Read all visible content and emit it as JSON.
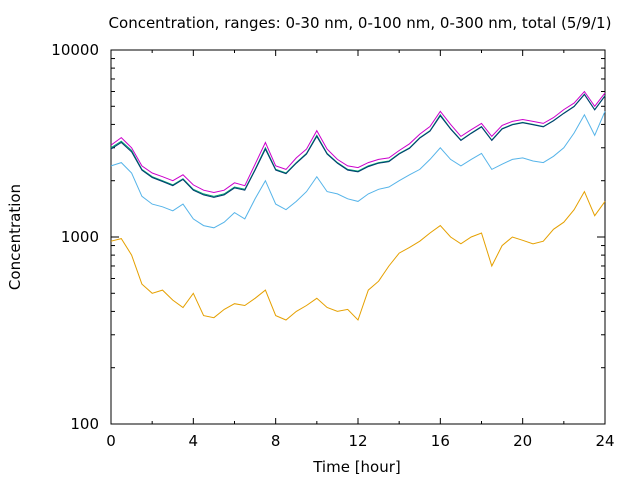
{
  "chart_data": {
    "type": "line",
    "title": "Concentration, ranges: 0-30 nm, 0-100 nm, 0-300 nm, total (5/9/1)",
    "xlabel": "Time [hour]",
    "ylabel": "Concentration",
    "xlim": [
      0,
      24
    ],
    "ylim": [
      100,
      10000
    ],
    "yscale": "log",
    "grid": false,
    "legend": "none",
    "x_ticks": [
      "0",
      "4",
      "8",
      "12",
      "16",
      "20",
      "24"
    ],
    "y_ticks": [
      "100",
      "1000",
      "10000"
    ],
    "x": [
      0,
      0.5,
      1,
      1.5,
      2,
      2.5,
      3,
      3.5,
      4,
      4.5,
      5,
      5.5,
      6,
      6.5,
      7,
      7.5,
      8,
      8.5,
      9,
      9.5,
      10,
      10.5,
      11,
      11.5,
      12,
      12.5,
      13,
      13.5,
      14,
      14.5,
      15,
      15.5,
      16,
      16.5,
      17,
      17.5,
      18,
      18.5,
      19,
      19.5,
      20,
      20.5,
      21,
      21.5,
      22,
      22.5,
      23,
      23.5,
      24
    ],
    "series": [
      {
        "color": "#e5a000",
        "values": [
          950,
          980,
          800,
          560,
          500,
          520,
          460,
          420,
          500,
          380,
          370,
          410,
          440,
          430,
          470,
          520,
          380,
          360,
          400,
          430,
          470,
          420,
          400,
          410,
          360,
          520,
          580,
          700,
          820,
          880,
          950,
          1050,
          1150,
          1000,
          920,
          1000,
          1050,
          700,
          900,
          1000,
          960,
          920,
          950,
          1100,
          1200,
          1400,
          1750,
          1300,
          1550
        ]
      },
      {
        "color": "#56b4e9",
        "values": [
          2400,
          2500,
          2200,
          1650,
          1500,
          1450,
          1380,
          1500,
          1250,
          1150,
          1120,
          1200,
          1350,
          1250,
          1600,
          2000,
          1500,
          1400,
          1550,
          1750,
          2100,
          1750,
          1700,
          1600,
          1550,
          1700,
          1800,
          1850,
          2000,
          2150,
          2300,
          2600,
          3000,
          2600,
          2400,
          2600,
          2800,
          2300,
          2450,
          2600,
          2650,
          2550,
          2500,
          2700,
          3000,
          3600,
          4500,
          3500,
          4700
        ]
      },
      {
        "color": "#009e73",
        "values": [
          3000,
          3250,
          2900,
          2300,
          2100,
          2000,
          1900,
          2050,
          1800,
          1700,
          1650,
          1700,
          1850,
          1800,
          2300,
          3000,
          2300,
          2200,
          2500,
          2800,
          3500,
          2800,
          2500,
          2300,
          2250,
          2400,
          2500,
          2550,
          2800,
          3000,
          3400,
          3700,
          4500,
          3800,
          3300,
          3600,
          3900,
          3300,
          3800,
          4000,
          4100,
          4000,
          3900,
          4200,
          4600,
          5000,
          5800,
          4800,
          5700
        ]
      },
      {
        "color": "#cc00cc",
        "values": [
          3100,
          3400,
          3000,
          2400,
          2200,
          2100,
          2000,
          2150,
          1900,
          1780,
          1730,
          1780,
          1950,
          1880,
          2450,
          3200,
          2400,
          2300,
          2650,
          2950,
          3700,
          2950,
          2600,
          2400,
          2350,
          2500,
          2600,
          2650,
          2900,
          3150,
          3550,
          3900,
          4700,
          4000,
          3450,
          3750,
          4050,
          3450,
          3950,
          4150,
          4250,
          4150,
          4050,
          4350,
          4800,
          5200,
          6000,
          5000,
          5900
        ]
      },
      {
        "color": "#003a6e",
        "values": [
          2950,
          3200,
          2850,
          2280,
          2080,
          1980,
          1880,
          2030,
          1780,
          1680,
          1630,
          1680,
          1830,
          1780,
          2280,
          2950,
          2280,
          2180,
          2480,
          2780,
          3450,
          2780,
          2480,
          2280,
          2230,
          2380,
          2480,
          2530,
          2780,
          2980,
          3380,
          3680,
          4450,
          3780,
          3280,
          3580,
          3880,
          3280,
          3780,
          3980,
          4080,
          3980,
          3880,
          4180,
          4580,
          4980,
          5780,
          4780,
          5680
        ]
      }
    ]
  }
}
